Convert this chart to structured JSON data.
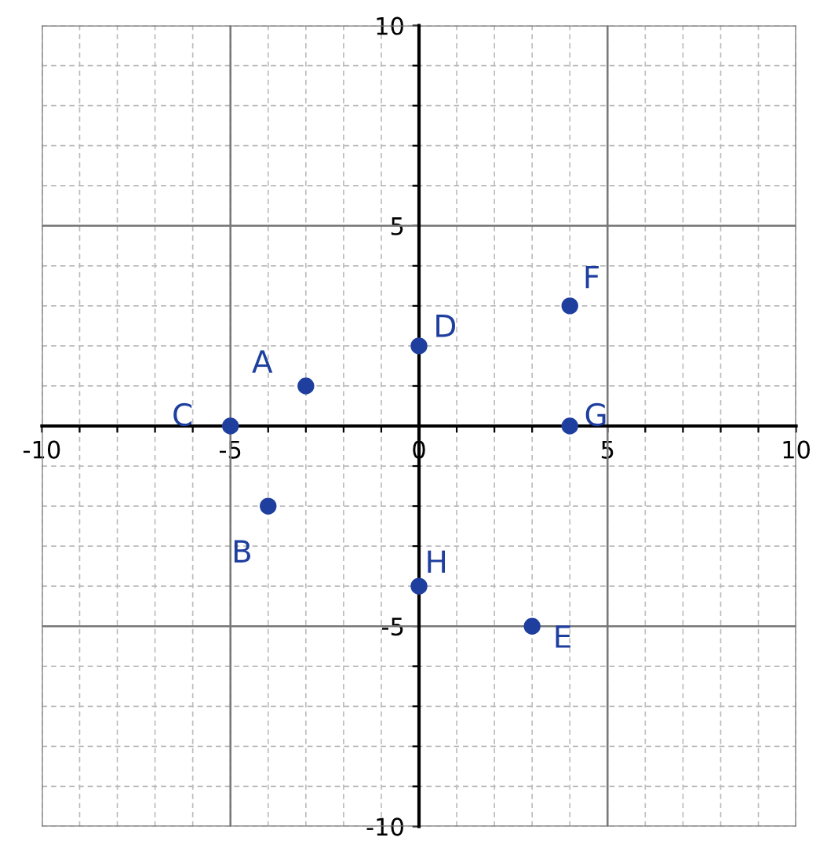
{
  "chart_data": {
    "type": "scatter",
    "x": [
      -3,
      -4,
      -5,
      0,
      3,
      4,
      4,
      0
    ],
    "values": [
      1,
      -2,
      0,
      2,
      -5,
      3,
      0,
      -4
    ],
    "color": "#1f3f9f",
    "marker": "circle",
    "xlim": [
      -10,
      10
    ],
    "ylim": [
      -10,
      10
    ],
    "xticks": [
      -10,
      {
        "value": -9,
        "label": null
      },
      {
        "value": -8,
        "label": null
      },
      {
        "value": -7,
        "label": null
      },
      {
        "value": -6,
        "label": null
      },
      -5,
      {
        "value": -4,
        "label": null
      },
      {
        "value": -3,
        "label": null
      },
      {
        "value": -2,
        "label": null
      },
      {
        "value": -1,
        "label": null
      },
      0,
      {
        "value": 1,
        "label": null
      },
      {
        "value": 2,
        "label": null
      },
      {
        "value": 3,
        "label": null
      },
      {
        "value": 4,
        "label": null
      },
      5,
      {
        "value": 6,
        "label": null
      },
      {
        "value": 7,
        "label": null
      },
      {
        "value": 8,
        "label": null
      },
      {
        "value": 9,
        "label": null
      },
      10
    ],
    "yticks": [
      -10,
      {
        "value": -9,
        "label": null
      },
      {
        "value": -8,
        "label": null
      },
      {
        "value": -7,
        "label": null
      },
      {
        "value": -6,
        "label": null
      },
      -5,
      {
        "value": -4,
        "label": null
      },
      {
        "value": -3,
        "label": null
      },
      {
        "value": -2,
        "label": null
      },
      {
        "value": -1,
        "label": null
      },
      {
        "value": 0,
        "label": null
      },
      {
        "value": 1,
        "label": null
      },
      {
        "value": 2,
        "label": null
      },
      {
        "value": 3,
        "label": null
      },
      {
        "value": 4,
        "label": null
      },
      5,
      {
        "value": 6,
        "label": null
      },
      {
        "value": 7,
        "label": null
      },
      {
        "value": 8,
        "label": null
      },
      {
        "value": 9,
        "label": null
      },
      10
    ],
    "grid": true,
    "annotations": [
      {
        "text": "A",
        "x": -3,
        "y": 1
      },
      {
        "text": "B",
        "x": -4,
        "y": -2
      },
      {
        "text": "C",
        "x": -5,
        "y": 0
      },
      {
        "text": "D",
        "x": 0,
        "y": 2
      },
      {
        "text": "E",
        "x": 3,
        "y": -5
      },
      {
        "text": "F",
        "x": 4,
        "y": 3
      },
      {
        "text": "G",
        "x": 4,
        "y": 0
      },
      {
        "text": "H",
        "x": 0,
        "y": -4
      }
    ]
  }
}
